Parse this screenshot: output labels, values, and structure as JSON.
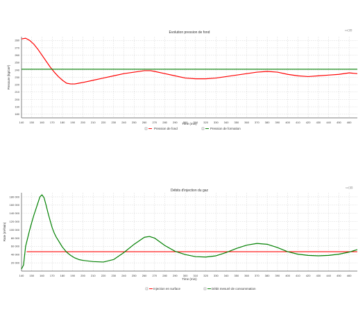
{
  "toolbar_icon": "toolbar-icons",
  "chart_data": [
    {
      "type": "line",
      "title": "Evolution pression de fond",
      "xlabel": "Time (min)",
      "ylabel": "Pressure (kg/cm²)",
      "x_ticks": [
        "140",
        "150",
        "160",
        "170",
        "180",
        "190",
        "200",
        "210",
        "220",
        "230",
        "240",
        "250",
        "260",
        "270",
        "280",
        "290",
        "300",
        "310",
        "320",
        "330",
        "340",
        "350",
        "360",
        "370",
        "380",
        "390",
        "400",
        "410",
        "420",
        "430",
        "440",
        "450",
        "460"
      ],
      "xlim": [
        140,
        468
      ],
      "ylim": [
        175,
        285
      ],
      "y_ticks": [
        180,
        190,
        200,
        210,
        220,
        230,
        240,
        250,
        260,
        270,
        280
      ],
      "grid": true,
      "legend_position": "bottom",
      "series": [
        {
          "name": "Pression de fond",
          "color": "#ff0000",
          "x": [
            140,
            144,
            148,
            152,
            156,
            160,
            164,
            168,
            172,
            176,
            180,
            184,
            188,
            192,
            196,
            200,
            210,
            220,
            230,
            240,
            250,
            260,
            266,
            270,
            280,
            290,
            300,
            310,
            320,
            330,
            340,
            350,
            360,
            370,
            380,
            390,
            400,
            410,
            420,
            430,
            440,
            450,
            460,
            468
          ],
          "y": [
            282,
            283,
            280,
            275,
            268,
            260,
            252,
            244,
            237,
            231,
            226,
            222,
            221,
            221,
            222,
            223,
            226,
            229,
            232,
            235,
            237,
            239,
            239,
            238,
            235,
            232,
            229,
            228,
            228,
            229,
            231,
            233,
            235,
            237,
            238,
            237,
            234,
            232,
            231,
            232,
            233,
            234,
            236,
            235
          ]
        },
        {
          "name": "Pression de formation",
          "color": "#008000",
          "x": [
            140,
            468
          ],
          "y": [
            241,
            241
          ]
        }
      ]
    },
    {
      "type": "line",
      "title": "Débits d'injection du gaz",
      "xlabel": "Time (min)",
      "ylabel": "Rate (m³/min)",
      "x_ticks": [
        "140",
        "150",
        "160",
        "170",
        "180",
        "190",
        "200",
        "210",
        "220",
        "230",
        "240",
        "250",
        "260",
        "270",
        "280",
        "290",
        "300",
        "310",
        "320",
        "330",
        "340",
        "350",
        "360",
        "370",
        "380",
        "390",
        "400",
        "410",
        "420",
        "430",
        "440",
        "450",
        "460"
      ],
      "xlim": [
        140,
        468
      ],
      "ylim": [
        0,
        190000
      ],
      "y_ticks": [
        "20 000",
        "40 000",
        "60 000",
        "80 000",
        "100 000",
        "120 000",
        "140 000",
        "160 000",
        "180 000"
      ],
      "grid": true,
      "legend_position": "bottom",
      "series": [
        {
          "name": "Injection en surface",
          "color": "#ff0000",
          "x": [
            145,
            468
          ],
          "y": [
            47000,
            47000
          ]
        },
        {
          "name": "Débit mesuré de consommation",
          "color": "#008000",
          "x": [
            140,
            142,
            144,
            146,
            148,
            150,
            152,
            154,
            156,
            158,
            160,
            162,
            164,
            166,
            168,
            170,
            172,
            174,
            176,
            178,
            180,
            184,
            188,
            192,
            196,
            200,
            210,
            220,
            230,
            240,
            250,
            260,
            265,
            270,
            280,
            290,
            300,
            310,
            320,
            330,
            340,
            350,
            360,
            370,
            380,
            390,
            400,
            410,
            420,
            430,
            440,
            450,
            460,
            468
          ],
          "y": [
            5000,
            15000,
            60000,
            80000,
            100000,
            118000,
            135000,
            150000,
            165000,
            180000,
            185000,
            178000,
            160000,
            140000,
            122000,
            105000,
            92000,
            82000,
            74000,
            66000,
            58000,
            46000,
            38000,
            32000,
            28000,
            26000,
            23000,
            22000,
            28000,
            45000,
            65000,
            82000,
            84000,
            80000,
            62000,
            48000,
            40000,
            35000,
            34000,
            37000,
            45000,
            55000,
            63000,
            67000,
            65000,
            57000,
            47000,
            41000,
            38000,
            37000,
            38000,
            41000,
            46000,
            52000
          ]
        }
      ]
    }
  ]
}
